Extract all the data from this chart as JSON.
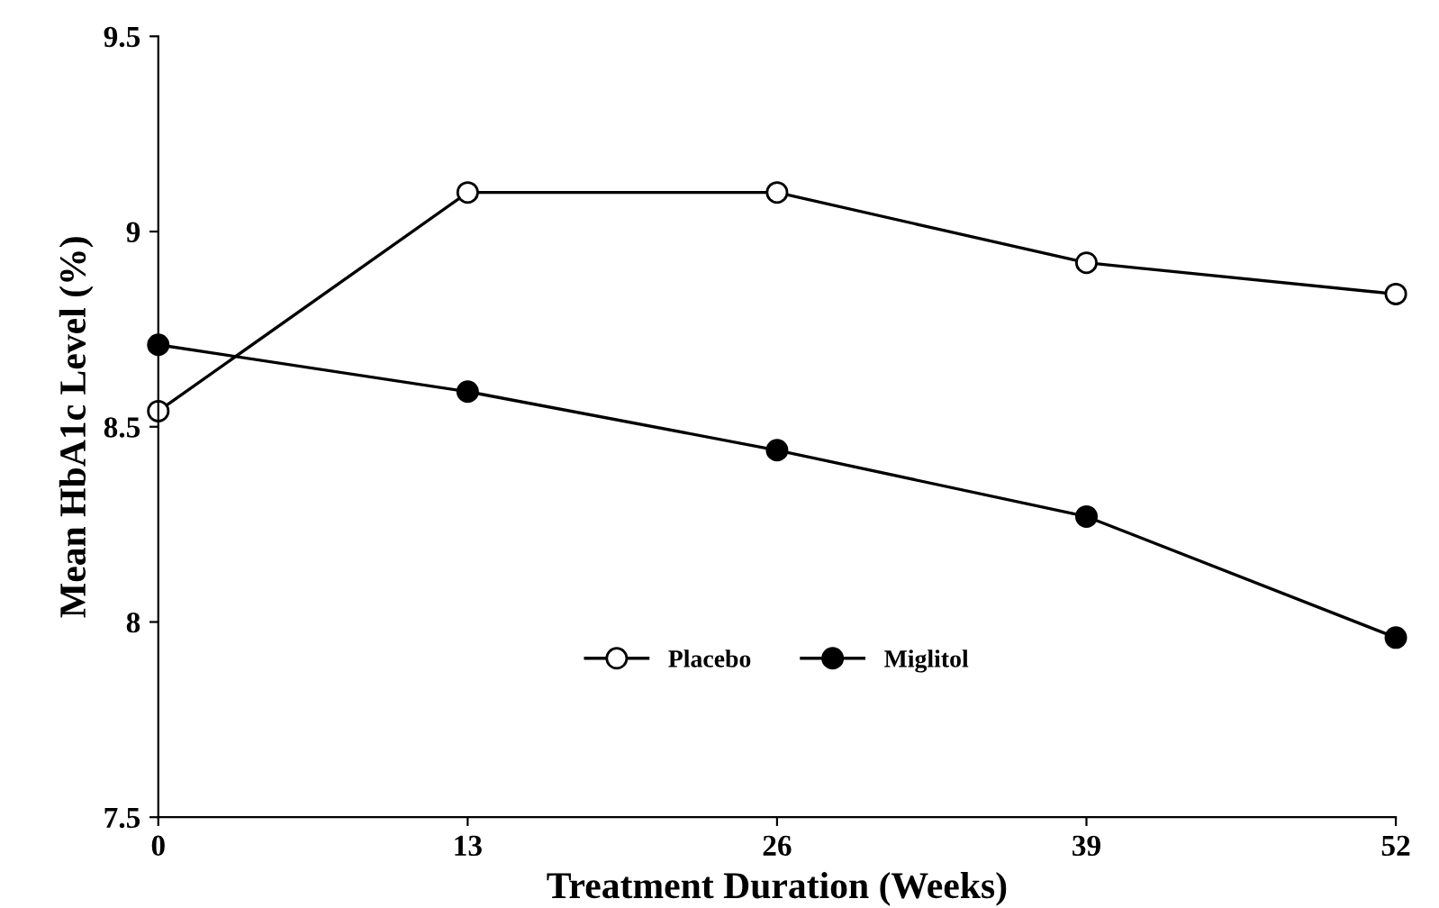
{
  "chart_data": {
    "type": "line",
    "xlabel": "Treatment Duration (Weeks)",
    "ylabel": "Mean HbA1c Level (%)",
    "x": [
      0,
      13,
      26,
      39,
      52
    ],
    "series": [
      {
        "name": "Placebo",
        "color": "#000000",
        "values": [
          8.54,
          9.1,
          9.1,
          8.92,
          8.84
        ],
        "marker": "circle"
      },
      {
        "name": "Miglitol",
        "color": "#000000",
        "values": [
          8.71,
          8.59,
          8.44,
          8.27,
          7.96
        ],
        "marker": "circle"
      }
    ],
    "xlim": [
      0,
      52
    ],
    "xticks": [
      0,
      13,
      26,
      39,
      52
    ],
    "ylim": [
      7.5,
      9.5
    ],
    "yticks": [
      7.5,
      9,
      8.5,
      8,
      9.5
    ],
    "legend": "bottom",
    "grid": false,
    "line_style": "solid"
  }
}
